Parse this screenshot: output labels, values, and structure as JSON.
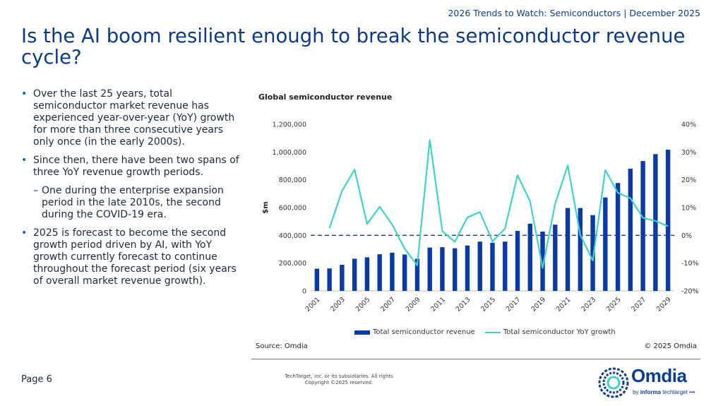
{
  "header": {
    "tag": "2026 Trends to Watch: Semiconductors | December 2025"
  },
  "title": "Is the AI boom resilient enough to break the semiconductor revenue cycle?",
  "bullets": [
    "Over the last 25 years, total semiconductor market revenue has experienced year-over-year (YoY) growth for more than three consecutive years only once (in the early 2000s).",
    "Since then, there have been two spans of three YoY revenue growth periods.",
    "2025 is forecast to become the second growth period driven by AI, with YoY growth currently forecast to continue throughout the forecast period (six years of overall market revenue growth)."
  ],
  "sub_bullet": "One during the enterprise expansion period in the late 2010s, the second during the COVID-19 era.",
  "markers": {
    "bullet": "•",
    "dash": "–"
  },
  "chart_data": {
    "type": "bar",
    "title": "Global semiconductor revenue",
    "ylabel": "$m",
    "x": [
      2001,
      2002,
      2003,
      2004,
      2005,
      2006,
      2007,
      2008,
      2009,
      2010,
      2011,
      2012,
      2013,
      2014,
      2015,
      2016,
      2017,
      2018,
      2019,
      2020,
      2021,
      2022,
      2023,
      2024,
      2025,
      2026,
      2027,
      2028,
      2029
    ],
    "x_tick_labels": [
      "2001",
      "2003",
      "2005",
      "2007",
      "2009",
      "2011",
      "2013",
      "2015",
      "2017",
      "2019",
      "2021",
      "2023",
      "2025",
      "2027",
      "2029"
    ],
    "series": [
      {
        "name": "Total semiconductor revenue",
        "type": "bar",
        "axis": "left",
        "color": "#0a3aa8",
        "values": [
          160000,
          162000,
          188000,
          232000,
          242000,
          264000,
          275000,
          262000,
          232000,
          312000,
          315000,
          307000,
          327000,
          355000,
          347000,
          355000,
          432000,
          484000,
          427000,
          477000,
          597000,
          597000,
          546000,
          673000,
          777000,
          880000,
          935000,
          985000,
          1017000
        ]
      },
      {
        "name": "Total semiconductor YoY growth",
        "type": "line",
        "axis": "right",
        "color": "#3fd3c9",
        "values": [
          null,
          2.6,
          16,
          23.7,
          4.1,
          10.3,
          3.9,
          -4.8,
          -10.8,
          34.3,
          1.5,
          -2.3,
          6.5,
          8.4,
          -2.2,
          2.5,
          21.7,
          12.2,
          -11.7,
          11.4,
          25.2,
          0.2,
          -9.1,
          23.5,
          15.3,
          13.4,
          6.3,
          5.2,
          3.3
        ]
      }
    ],
    "y_left": {
      "ylim": [
        0,
        1200000
      ],
      "ticks": [
        "0",
        "200,000",
        "400,000",
        "600,000",
        "800,000",
        "1,000,000",
        "1,200,000"
      ]
    },
    "y_right": {
      "ylim": [
        -20,
        40
      ],
      "ticks": [
        "-20%",
        "-10%",
        "0%",
        "10%",
        "20%",
        "30%",
        "40%"
      ]
    },
    "zero_growth_line": {
      "style": "dashed",
      "color": "#1f3a8a"
    },
    "legend": "bottom",
    "grid": false
  },
  "footer": {
    "source": "Source: Omdia",
    "chart_copyright": "© 2025 Omdia",
    "page": "Page 6",
    "copyright_line1": "TechTarget, Inc. or its subsidiaries. All rights",
    "copyright_line2": "Copyright ©2025 reserved."
  },
  "logo": {
    "word": "Omdia",
    "sub_prefix": "by",
    "sub_brand": "informa",
    "sub_suffix": "techtarget"
  }
}
